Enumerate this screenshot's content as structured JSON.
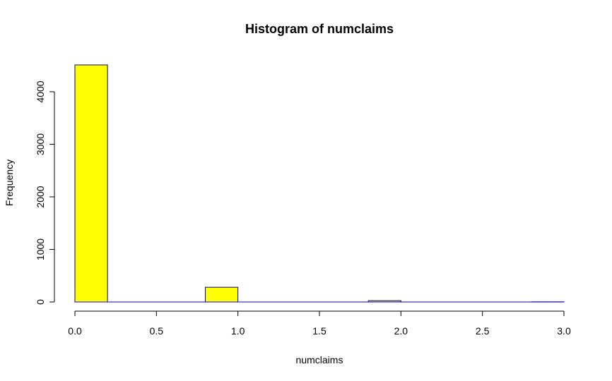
{
  "chart_data": {
    "type": "bar",
    "title": "Histogram of numclaims",
    "xlabel": "numclaims",
    "ylabel": "Frequency",
    "xlim": [
      0,
      3
    ],
    "ylim": [
      0,
      4500
    ],
    "x_ticks": [
      "0.0",
      "0.5",
      "1.0",
      "1.5",
      "2.0",
      "2.5",
      "3.0"
    ],
    "y_ticks": [
      "0",
      "1000",
      "2000",
      "3000",
      "4000"
    ],
    "bins": [
      {
        "start": 0.0,
        "end": 0.2,
        "value": 4510
      },
      {
        "start": 0.2,
        "end": 0.4,
        "value": 0
      },
      {
        "start": 0.4,
        "end": 0.6,
        "value": 0
      },
      {
        "start": 0.6,
        "end": 0.8,
        "value": 0
      },
      {
        "start": 0.8,
        "end": 1.0,
        "value": 280
      },
      {
        "start": 1.0,
        "end": 1.2,
        "value": 0
      },
      {
        "start": 1.2,
        "end": 1.4,
        "value": 0
      },
      {
        "start": 1.4,
        "end": 1.6,
        "value": 0
      },
      {
        "start": 1.6,
        "end": 1.8,
        "value": 0
      },
      {
        "start": 1.8,
        "end": 2.0,
        "value": 25
      },
      {
        "start": 2.0,
        "end": 2.2,
        "value": 0
      },
      {
        "start": 2.2,
        "end": 2.4,
        "value": 0
      },
      {
        "start": 2.4,
        "end": 2.6,
        "value": 0
      },
      {
        "start": 2.6,
        "end": 2.8,
        "value": 0
      },
      {
        "start": 2.8,
        "end": 3.0,
        "value": 3
      }
    ],
    "colors": {
      "bar_fill": "#ffff00",
      "bar_border": "#00008b",
      "baseline": "#0000ff"
    },
    "grid": false
  }
}
